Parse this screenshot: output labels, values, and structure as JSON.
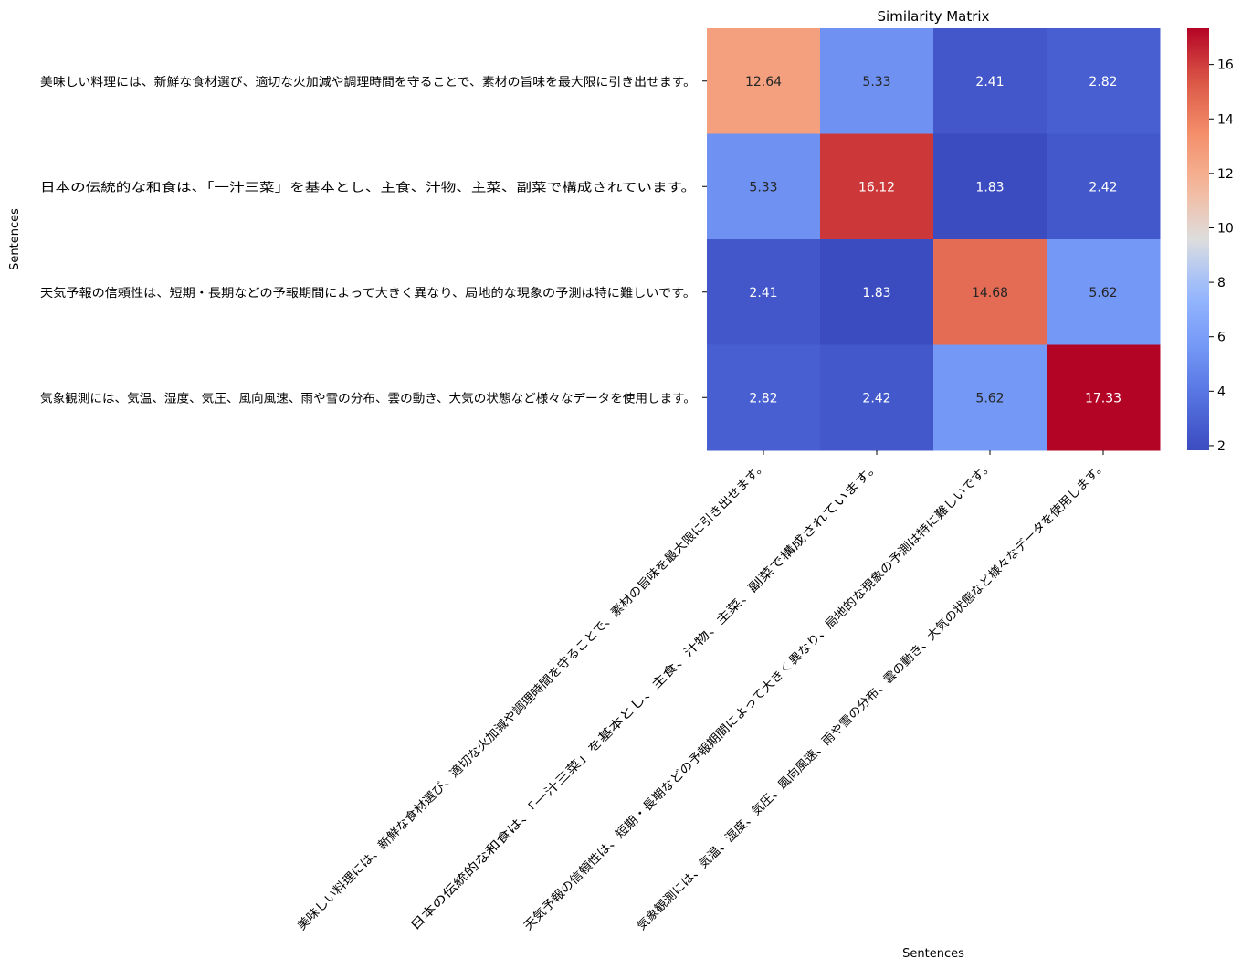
{
  "chart_data": {
    "type": "heatmap",
    "title": "Similarity Matrix",
    "xlabel": "Sentences",
    "ylabel": "Sentences",
    "categories": [
      "美味しい料理には、新鮮な食材選び、適切な火加減や調理時間を守ることで、素材の旨味を最大限に引き出せます。",
      "日本の伝統的な和食は、「一汁三菜」を基本とし、主食、汁物、主菜、副菜で構成されています。",
      "天気予報の信頼性は、短期・長期などの予報期間によって大きく異なり、局地的な現象の予測は特に難しいです。",
      "気象観測には、気温、湿度、気圧、風向風速、雨や雪の分布、雲の動き、大気の状態など様々なデータを使用します。"
    ],
    "values": [
      [
        12.64,
        5.33,
        2.41,
        2.82
      ],
      [
        5.33,
        16.12,
        1.83,
        2.42
      ],
      [
        2.41,
        1.83,
        14.68,
        5.62
      ],
      [
        2.82,
        2.42,
        5.62,
        17.33
      ]
    ],
    "colormap": "coolwarm",
    "vmin": 1.83,
    "vmax": 17.33,
    "colorbar_ticks": [
      2,
      4,
      6,
      8,
      10,
      12,
      14,
      16
    ]
  }
}
